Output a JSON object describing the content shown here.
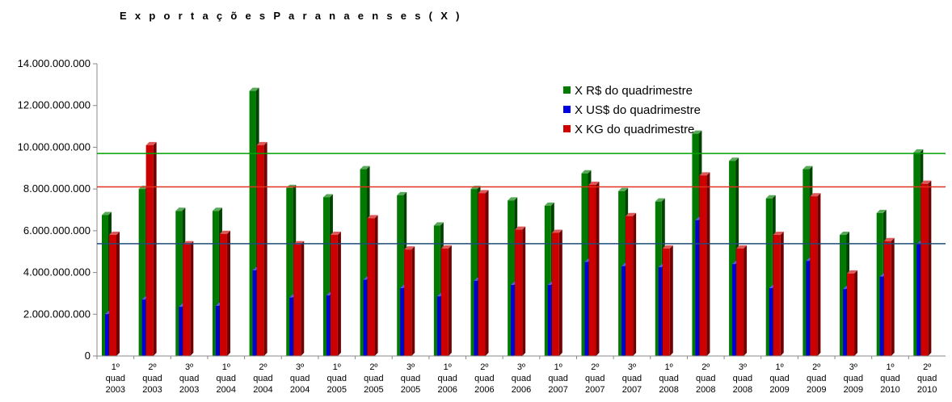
{
  "chart_data": {
    "type": "bar",
    "title": "E x p o r t a ç õ e s  P a r a n a e n s e s  ( X )",
    "xlabel": "",
    "ylabel": "",
    "ylim": [
      0,
      14000000000
    ],
    "yticks": [
      "0",
      "2.000.000.000",
      "4.000.000.000",
      "6.000.000.000",
      "8.000.000.000",
      "10.000.000.000",
      "12.000.000.000",
      "14.000.000.000"
    ],
    "ytick_values": [
      0,
      2000000000,
      4000000000,
      6000000000,
      8000000000,
      10000000000,
      12000000000,
      14000000000
    ],
    "grid": false,
    "legend_position": "top-right",
    "categories": [
      [
        "1º",
        "quad",
        "2003"
      ],
      [
        "2º",
        "quad",
        "2003"
      ],
      [
        "3º",
        "quad",
        "2003"
      ],
      [
        "1º",
        "quad",
        "2004"
      ],
      [
        "2º",
        "quad",
        "2004"
      ],
      [
        "3º",
        "quad",
        "2004"
      ],
      [
        "1º",
        "quad",
        "2005"
      ],
      [
        "2º",
        "quad",
        "2005"
      ],
      [
        "3º",
        "quad",
        "2005"
      ],
      [
        "1º",
        "quad",
        "2006"
      ],
      [
        "2º",
        "quad",
        "2006"
      ],
      [
        "3º",
        "quad",
        "2006"
      ],
      [
        "1º",
        "quad",
        "2007"
      ],
      [
        "2º",
        "quad",
        "2007"
      ],
      [
        "3º",
        "quad",
        "2007"
      ],
      [
        "1º",
        "quad",
        "2008"
      ],
      [
        "2º",
        "quad",
        "2008"
      ],
      [
        "3º",
        "quad",
        "2008"
      ],
      [
        "1º",
        "quad",
        "2009"
      ],
      [
        "2º",
        "quad",
        "2009"
      ],
      [
        "3º",
        "quad",
        "2009"
      ],
      [
        "1º",
        "quad",
        "2010"
      ],
      [
        "2º",
        "quad",
        "2010"
      ]
    ],
    "series": [
      {
        "name": "X R$ do quadrimestre",
        "color": "#007a00",
        "values": [
          6750000000,
          8000000000,
          6950000000,
          6950000000,
          12700000000,
          8050000000,
          7600000000,
          8950000000,
          7700000000,
          6250000000,
          8000000000,
          7450000000,
          7200000000,
          8750000000,
          7900000000,
          7400000000,
          10650000000,
          9350000000,
          7550000000,
          8950000000,
          5800000000,
          6850000000,
          9750000000
        ]
      },
      {
        "name": "X US$ do quadrimestre",
        "color": "#0000dd",
        "values": [
          2000000000,
          2700000000,
          2350000000,
          2400000000,
          4100000000,
          2800000000,
          2900000000,
          3650000000,
          3250000000,
          2850000000,
          3600000000,
          3400000000,
          3400000000,
          4500000000,
          4300000000,
          4250000000,
          6500000000,
          4400000000,
          3250000000,
          4550000000,
          3200000000,
          3800000000,
          5350000000
        ]
      },
      {
        "name": "X KG do quadrimestre",
        "color": "#cc0000",
        "values": [
          5800000000,
          10100000000,
          5350000000,
          5850000000,
          10100000000,
          5350000000,
          5800000000,
          6600000000,
          5100000000,
          5150000000,
          7800000000,
          6050000000,
          5900000000,
          8200000000,
          6700000000,
          5150000000,
          8650000000,
          5150000000,
          5800000000,
          7650000000,
          3950000000,
          5500000000,
          8250000000
        ]
      }
    ],
    "reference_lines": [
      {
        "color": "#00a000",
        "value": 9700000000
      },
      {
        "color": "#e03020",
        "value": 8100000000
      },
      {
        "color": "#1f4e79",
        "value": 5380000000
      }
    ]
  }
}
